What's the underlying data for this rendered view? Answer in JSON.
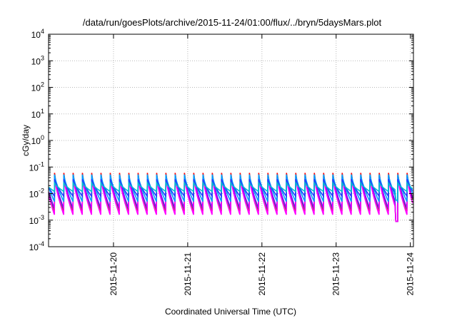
{
  "chart_data": {
    "type": "line",
    "title": "/data/run/goesPlots/archive/2015-11-24/01:00/flux/../bryn/5daysMars.plot",
    "xlabel": "Coordinated Universal Time (UTC)",
    "ylabel": "cGy/day",
    "yscale": "log",
    "ylim": [
      0.0001,
      10000
    ],
    "xlim": [
      "2015-11-19 03:00",
      "2015-11-24 01:00"
    ],
    "yticks": [
      {
        "base": "10",
        "exp": "-4"
      },
      {
        "base": "10",
        "exp": "-3"
      },
      {
        "base": "10",
        "exp": "-2"
      },
      {
        "base": "10",
        "exp": "-1"
      },
      {
        "base": "10",
        "exp": "0"
      },
      {
        "base": "10",
        "exp": "1"
      },
      {
        "base": "10",
        "exp": "2"
      },
      {
        "base": "10",
        "exp": "3"
      },
      {
        "base": "10",
        "exp": "4"
      }
    ],
    "xticks": [
      "2015-11-20",
      "2015-11-21",
      "2015-11-22",
      "2015-11-23",
      "2015-11-24"
    ],
    "grid": true,
    "legend": "none",
    "sawtooth": {
      "cycles_per_day": 8,
      "dip_time": "2015-11-23 19:00",
      "dip_value": 0.0009
    },
    "series": [
      {
        "color": "#ff0000",
        "peak": 0.06,
        "trough": 0.0022
      },
      {
        "color": "#00b040",
        "peak": 0.05,
        "trough": 0.0025
      },
      {
        "color": "#8000ff",
        "peak": 0.045,
        "trough": 0.0028
      },
      {
        "color": "#ff00ff",
        "peak": 0.04,
        "trough": 0.0016
      },
      {
        "color": "#00a0ff",
        "peak": 0.052,
        "trough": 0.005
      },
      {
        "color": "#2040ff",
        "peak": 0.035,
        "trough": 0.008
      },
      {
        "color": "#00c0d0",
        "peak": 0.025,
        "trough": 0.012
      }
    ]
  }
}
